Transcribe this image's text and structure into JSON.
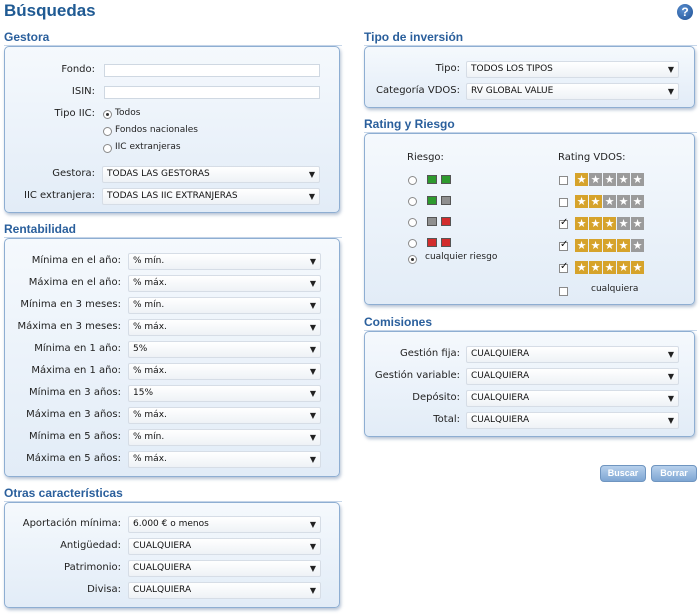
{
  "page": {
    "title": "Búsquedas",
    "help_icon": "question-circle-icon",
    "help_glyph": "?"
  },
  "colors": {
    "title": "#1f5a93",
    "section_title": "#2a5f9c",
    "panel_border": "#8eaed2",
    "star_on": "#d6a32b",
    "star_off": "#9b9b9b",
    "risk_green": "#2e9a2e",
    "risk_gray": "#8f8f8f",
    "risk_red": "#d22c2c"
  },
  "gestora": {
    "title": "Gestora",
    "fondo_label": "Fondo:",
    "fondo_value": "",
    "isin_label": "ISIN:",
    "isin_value": "",
    "tipo_label": "Tipo IIC:",
    "tipo_options": [
      "Todos",
      "Fondos nacionales",
      "IIC extranjeras"
    ],
    "tipo_selected": "Todos",
    "gestora_label": "Gestora:",
    "gestora_value": "TODAS LAS GESTORAS",
    "iic_label": "IIC extranjera:",
    "iic_value": "TODAS LAS IIC EXTRANJERAS"
  },
  "rentabilidad": {
    "title": "Rentabilidad",
    "rows": [
      {
        "label": "Mínima en el año:",
        "value": "% mín."
      },
      {
        "label": "Máxima en el año:",
        "value": "% máx."
      },
      {
        "label": "Mínima en 3 meses:",
        "value": "% mín."
      },
      {
        "label": "Máxima en 3 meses:",
        "value": "% máx."
      },
      {
        "label": "Mínima en 1 año:",
        "value": "5%"
      },
      {
        "label": "Máxima en 1 año:",
        "value": "% máx."
      },
      {
        "label": "Mínima en 3 años:",
        "value": "15%"
      },
      {
        "label": "Máxima en 3 años:",
        "value": "% máx."
      },
      {
        "label": "Mínima en 5 años:",
        "value": "% mín."
      },
      {
        "label": "Máxima en 5 años:",
        "value": "% máx."
      }
    ]
  },
  "otras": {
    "title": "Otras características",
    "rows": [
      {
        "label": "Aportación mínima:",
        "value": "6.000 € o menos"
      },
      {
        "label": "Antigüedad:",
        "value": "CUALQUIERA"
      },
      {
        "label": "Patrimonio:",
        "value": "CUALQUIERA"
      },
      {
        "label": "Divisa:",
        "value": "CUALQUIERA"
      }
    ]
  },
  "tipo_inversion": {
    "title": "Tipo de inversión",
    "rows": [
      {
        "label": "Tipo:",
        "value": "TODOS LOS TIPOS"
      },
      {
        "label": "Categoría VDOS:",
        "value": "RV GLOBAL VALUE"
      }
    ]
  },
  "rating": {
    "title": "Rating y Riesgo",
    "riesgo_label": "Riesgo:",
    "rating_label": "Rating VDOS:",
    "risk_options": [
      {
        "squares": [
          "green",
          "green"
        ],
        "selected": false
      },
      {
        "squares": [
          "green",
          "gray"
        ],
        "selected": false
      },
      {
        "squares": [
          "gray",
          "red"
        ],
        "selected": false
      },
      {
        "squares": [
          "red",
          "red"
        ],
        "selected": false
      }
    ],
    "risk_any_label": "cualquier riesgo",
    "risk_any_selected": true,
    "rating_options": [
      {
        "stars": 1,
        "checked": false
      },
      {
        "stars": 2,
        "checked": false
      },
      {
        "stars": 3,
        "checked": true
      },
      {
        "stars": 4,
        "checked": true
      },
      {
        "stars": 5,
        "checked": true
      }
    ],
    "rating_any_label": "cualquiera",
    "rating_any_checked": false
  },
  "comisiones": {
    "title": "Comisiones",
    "rows": [
      {
        "label": "Gestión fija:",
        "value": "CUALQUIERA"
      },
      {
        "label": "Gestión variable:",
        "value": "CUALQUIERA"
      },
      {
        "label": "Depósito:",
        "value": "CUALQUIERA"
      },
      {
        "label": "Total:",
        "value": "CUALQUIERA"
      }
    ]
  },
  "actions": {
    "buscar_label": "Buscar",
    "borrar_label": "Borrar"
  }
}
